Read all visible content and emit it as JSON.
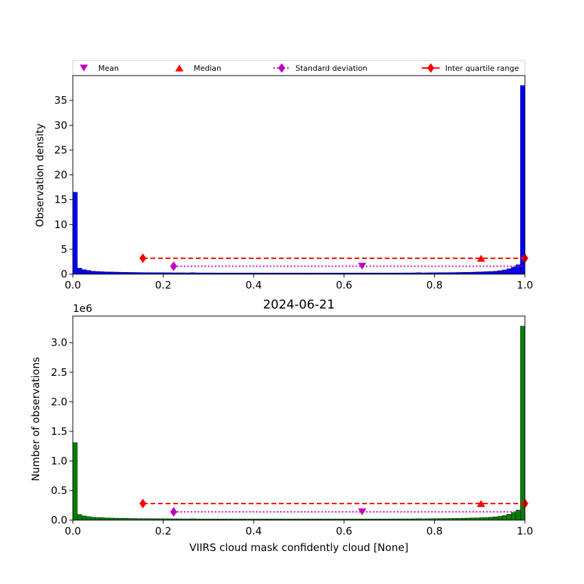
{
  "colors": {
    "top_bars": "#0000ff",
    "bottom_bars": "#008000",
    "mean": "#bf00bf",
    "median": "#ff0000",
    "std": "#bf00bf",
    "iqr": "#ff0000"
  },
  "legend": {
    "placement": "above-top-axes",
    "mean": "Mean",
    "median": "Median",
    "std": "Standard deviation",
    "iqr": "Inter quartile range"
  },
  "stats": {
    "mean": 0.64,
    "median": 0.903,
    "std_low": 0.223,
    "std_high": 1.0,
    "iqr_low": 0.155,
    "iqr_high": 1.0
  },
  "chart_data": [
    {
      "type": "bar",
      "bin_width": 0.01,
      "xlabel": "",
      "ylabel": "Observation density",
      "xlim": [
        0,
        1
      ],
      "ylim": [
        0,
        40
      ],
      "xticks": [
        "0.0",
        "0.2",
        "0.4",
        "0.6",
        "0.8",
        "1.0"
      ],
      "yticks": [
        "0",
        "5",
        "10",
        "15",
        "20",
        "25",
        "30",
        "35"
      ],
      "marker_y": {
        "mean": 1.6,
        "median": 3.2,
        "std": 1.6,
        "iqr": 3.2
      },
      "values": [
        16.5,
        1.2,
        0.9,
        0.75,
        0.6,
        0.55,
        0.5,
        0.45,
        0.45,
        0.42,
        0.4,
        0.38,
        0.36,
        0.35,
        0.34,
        0.33,
        0.32,
        0.31,
        0.3,
        0.3,
        0.29,
        0.29,
        0.28,
        0.28,
        0.28,
        0.27,
        0.3,
        0.27,
        0.26,
        0.26,
        0.26,
        0.25,
        0.25,
        0.25,
        0.25,
        0.24,
        0.24,
        0.24,
        0.24,
        0.24,
        0.24,
        0.24,
        0.23,
        0.23,
        0.23,
        0.23,
        0.23,
        0.23,
        0.23,
        0.23,
        0.23,
        0.23,
        0.23,
        0.23,
        0.23,
        0.23,
        0.23,
        0.23,
        0.23,
        0.23,
        0.23,
        0.23,
        0.24,
        0.24,
        0.24,
        0.24,
        0.24,
        0.24,
        0.24,
        0.25,
        0.25,
        0.25,
        0.25,
        0.26,
        0.26,
        0.27,
        0.3,
        0.27,
        0.28,
        0.29,
        0.3,
        0.31,
        0.32,
        0.33,
        0.34,
        0.35,
        0.37,
        0.39,
        0.41,
        0.44,
        0.47,
        0.5,
        0.55,
        0.6,
        0.7,
        0.85,
        1.1,
        1.4,
        1.9,
        38.0
      ]
    },
    {
      "type": "bar",
      "bin_width": 0.01,
      "title": "2024-06-21",
      "xlabel": "VIIRS cloud mask confidently cloud [None]",
      "ylabel": "Number of observations",
      "offset_label": "1e6",
      "xlim": [
        0,
        1
      ],
      "ylim": [
        0,
        3.45
      ],
      "xticks": [
        "0.0",
        "0.2",
        "0.4",
        "0.6",
        "0.8",
        "1.0"
      ],
      "yticks": [
        "0.0",
        "0.5",
        "1.0",
        "1.5",
        "2.0",
        "2.5",
        "3.0"
      ],
      "marker_y": {
        "mean": 0.14,
        "median": 0.28,
        "std": 0.14,
        "iqr": 0.28
      },
      "values": [
        1.31,
        0.095,
        0.072,
        0.06,
        0.05,
        0.045,
        0.042,
        0.038,
        0.036,
        0.034,
        0.032,
        0.031,
        0.029,
        0.028,
        0.027,
        0.026,
        0.026,
        0.025,
        0.025,
        0.024,
        0.024,
        0.023,
        0.023,
        0.023,
        0.022,
        0.022,
        0.024,
        0.022,
        0.021,
        0.021,
        0.021,
        0.021,
        0.021,
        0.02,
        0.02,
        0.02,
        0.02,
        0.02,
        0.02,
        0.02,
        0.02,
        0.02,
        0.02,
        0.02,
        0.02,
        0.02,
        0.02,
        0.02,
        0.02,
        0.02,
        0.02,
        0.02,
        0.02,
        0.02,
        0.02,
        0.02,
        0.02,
        0.02,
        0.02,
        0.02,
        0.02,
        0.02,
        0.02,
        0.02,
        0.02,
        0.02,
        0.02,
        0.02,
        0.021,
        0.021,
        0.021,
        0.021,
        0.022,
        0.022,
        0.022,
        0.023,
        0.025,
        0.023,
        0.024,
        0.025,
        0.026,
        0.027,
        0.028,
        0.029,
        0.03,
        0.031,
        0.033,
        0.035,
        0.037,
        0.039,
        0.042,
        0.045,
        0.05,
        0.056,
        0.065,
        0.078,
        0.1,
        0.13,
        0.17,
        3.28
      ]
    }
  ]
}
